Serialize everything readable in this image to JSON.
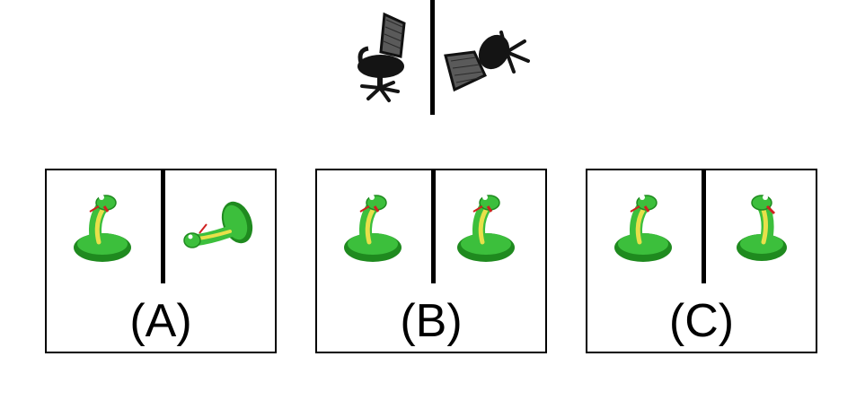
{
  "reference": {
    "left_object": "office-chair-icon",
    "right_object": "office-chair-rotated-icon"
  },
  "options": [
    {
      "label": "(A)",
      "left_object": "snake-icon",
      "right_object": "snake-rotated-icon"
    },
    {
      "label": "(B)",
      "left_object": "snake-icon",
      "right_object": "snake-icon"
    },
    {
      "label": "(C)",
      "left_object": "snake-icon",
      "right_object": "snake-mirrored-icon"
    }
  ],
  "colors": {
    "snake_green": "#3cbf3c",
    "snake_dark": "#1f8a1f",
    "snake_yellow": "#e8e04a",
    "tongue_red": "#d02020",
    "chair_black": "#141414",
    "chair_mesh": "#6a6a6a"
  }
}
